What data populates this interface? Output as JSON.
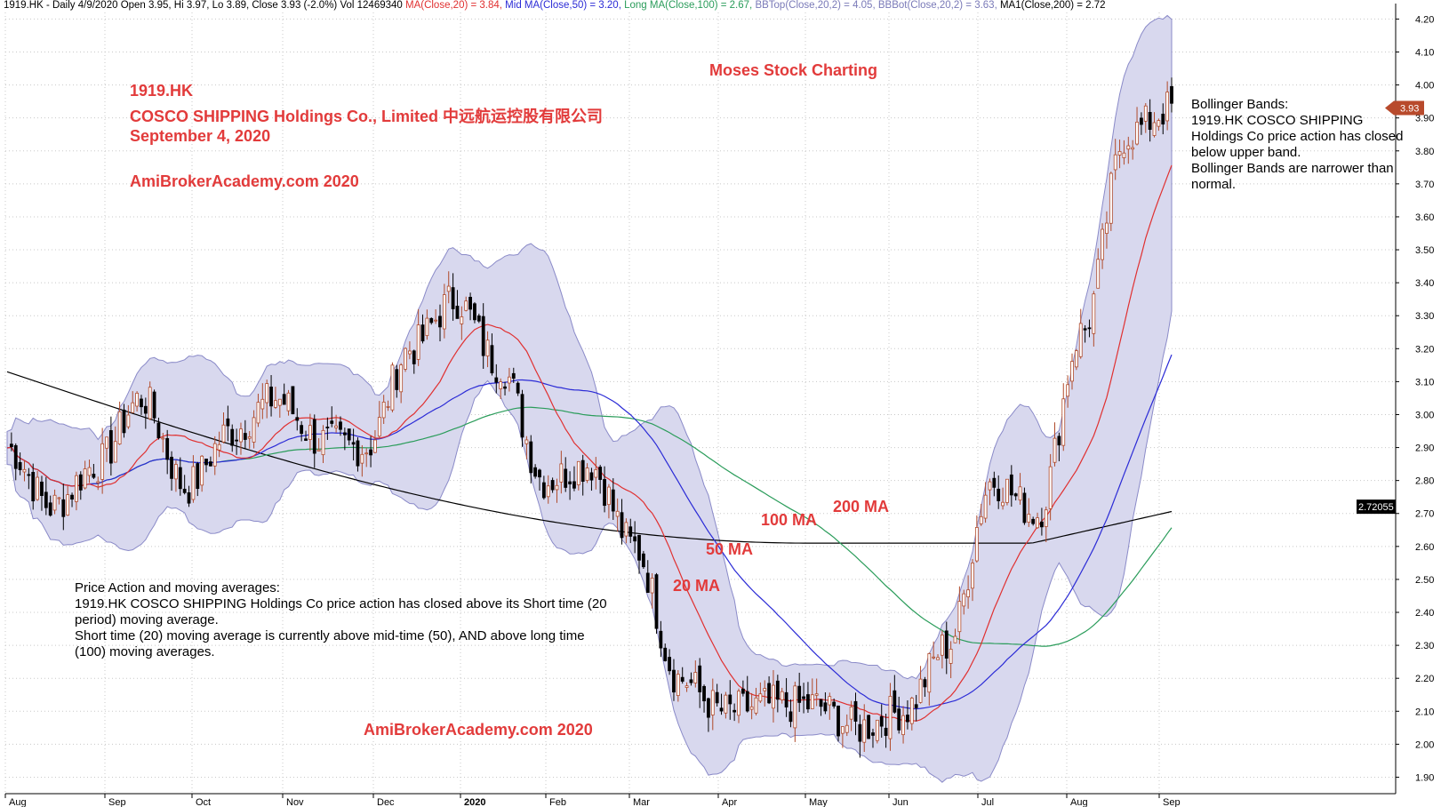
{
  "header": {
    "symbol_line": "1919.HK - Daily 4/9/2020 Open 3.95, Hi 3.97, Lo 3.89, Close 3.93 (-2.0%) Vol 12469340",
    "ma20": " MA(Close,20) = 3.84,",
    "ma50": " Mid MA(Close,50) = 3.20,",
    "ma100": " Long MA(Close,100) = 2.67,",
    "bbtop": " BBTop(Close,20,2) = 4.05,",
    "bbbot": " BBBot(Close,20,2) = 3.63,",
    "ma200": " MA1(Close,200) = 2.72",
    "colors": {
      "ma20": "#e03030",
      "ma50": "#2b2bd6",
      "ma100": "#2a9c5a",
      "bb": "#7a7ab8",
      "ma200": "#000000"
    }
  },
  "titles": {
    "ticker": "1919.HK",
    "company": "COSCO SHIPPING Holdings Co., Limited 中远航运控股有限公司",
    "date": "September 4, 2020",
    "site_top": "AmiBrokerAcademy.com  2020",
    "site_bottom": "AmiBrokerAcademy.com  2020",
    "brand": "Moses Stock Charting"
  },
  "notes": {
    "bollinger": [
      "Bollinger Bands:",
      "1919.HK COSCO SHIPPING",
      "Holdings Co price action has closed",
      "below upper band.",
      "Bollinger Bands are narrower than",
      "normal."
    ],
    "price_action": [
      "Price Action and moving averages:",
      "1919.HK COSCO SHIPPING Holdings Co price action has closed above its Short time (20",
      "period) moving average.",
      "Short time (20) moving average is currently above mid-time (50), AND above long time",
      "(100) moving averages."
    ]
  },
  "annotations": {
    "ma20": "20 MA",
    "ma50": "50 MA",
    "ma100": "100 MA",
    "ma200": "200 MA"
  },
  "markers": {
    "last_close": "3.93",
    "ma200_value": "2.72055"
  },
  "chart_data": {
    "type": "candlestick",
    "y_axis": {
      "min": 1.85,
      "max": 4.22,
      "ticks": [
        1.9,
        2.0,
        2.1,
        2.2,
        2.3,
        2.4,
        2.5,
        2.6,
        2.7,
        2.8,
        2.9,
        3.0,
        3.1,
        3.2,
        3.3,
        3.4,
        3.5,
        3.6,
        3.7,
        3.8,
        3.9,
        4.0,
        4.1,
        4.2
      ]
    },
    "x_axis": {
      "labels": [
        "Aug",
        "Sep",
        "Oct",
        "Nov",
        "Dec",
        "2020",
        "Feb",
        "Mar",
        "Apr",
        "May",
        "Jun",
        "Jul",
        "Aug",
        "Sep"
      ]
    },
    "series_close": [
      {
        "date": "Aug 2019",
        "close": 2.9
      },
      {
        "date": "Aug mid",
        "close": 2.72
      },
      {
        "date": "Sep 2019",
        "close": 2.85
      },
      {
        "date": "Sep mid",
        "close": 3.05
      },
      {
        "date": "Oct 2019",
        "close": 2.78
      },
      {
        "date": "Oct mid",
        "close": 2.95
      },
      {
        "date": "Nov 2019",
        "close": 3.05
      },
      {
        "date": "Nov mid",
        "close": 2.92
      },
      {
        "date": "Dec 2019",
        "close": 2.9
      },
      {
        "date": "Dec mid",
        "close": 3.2
      },
      {
        "date": "Jan 2020",
        "close": 3.35
      },
      {
        "date": "Jan mid",
        "close": 3.15
      },
      {
        "date": "Feb 2020",
        "close": 2.8
      },
      {
        "date": "Feb mid",
        "close": 2.85
      },
      {
        "date": "Mar 2020",
        "close": 2.6
      },
      {
        "date": "Mar mid",
        "close": 2.2
      },
      {
        "date": "Apr 2020",
        "close": 2.1
      },
      {
        "date": "Apr mid",
        "close": 2.12
      },
      {
        "date": "May 2020",
        "close": 2.12
      },
      {
        "date": "May mid",
        "close": 2.05
      },
      {
        "date": "Jun 2020",
        "close": 2.1
      },
      {
        "date": "Jun mid",
        "close": 2.3
      },
      {
        "date": "Jul 2020",
        "close": 2.8
      },
      {
        "date": "Jul mid",
        "close": 2.7
      },
      {
        "date": "Aug 2020",
        "close": 3.25
      },
      {
        "date": "Aug mid",
        "close": 3.85
      },
      {
        "date": "Sep 2020",
        "close": 3.93
      }
    ],
    "legend": [
      "MA(Close,20)",
      "Mid MA(Close,50)",
      "Long MA(Close,100)",
      "BBTop(Close,20,2)",
      "BBBot(Close,20,2)",
      "MA1(Close,200)"
    ]
  }
}
